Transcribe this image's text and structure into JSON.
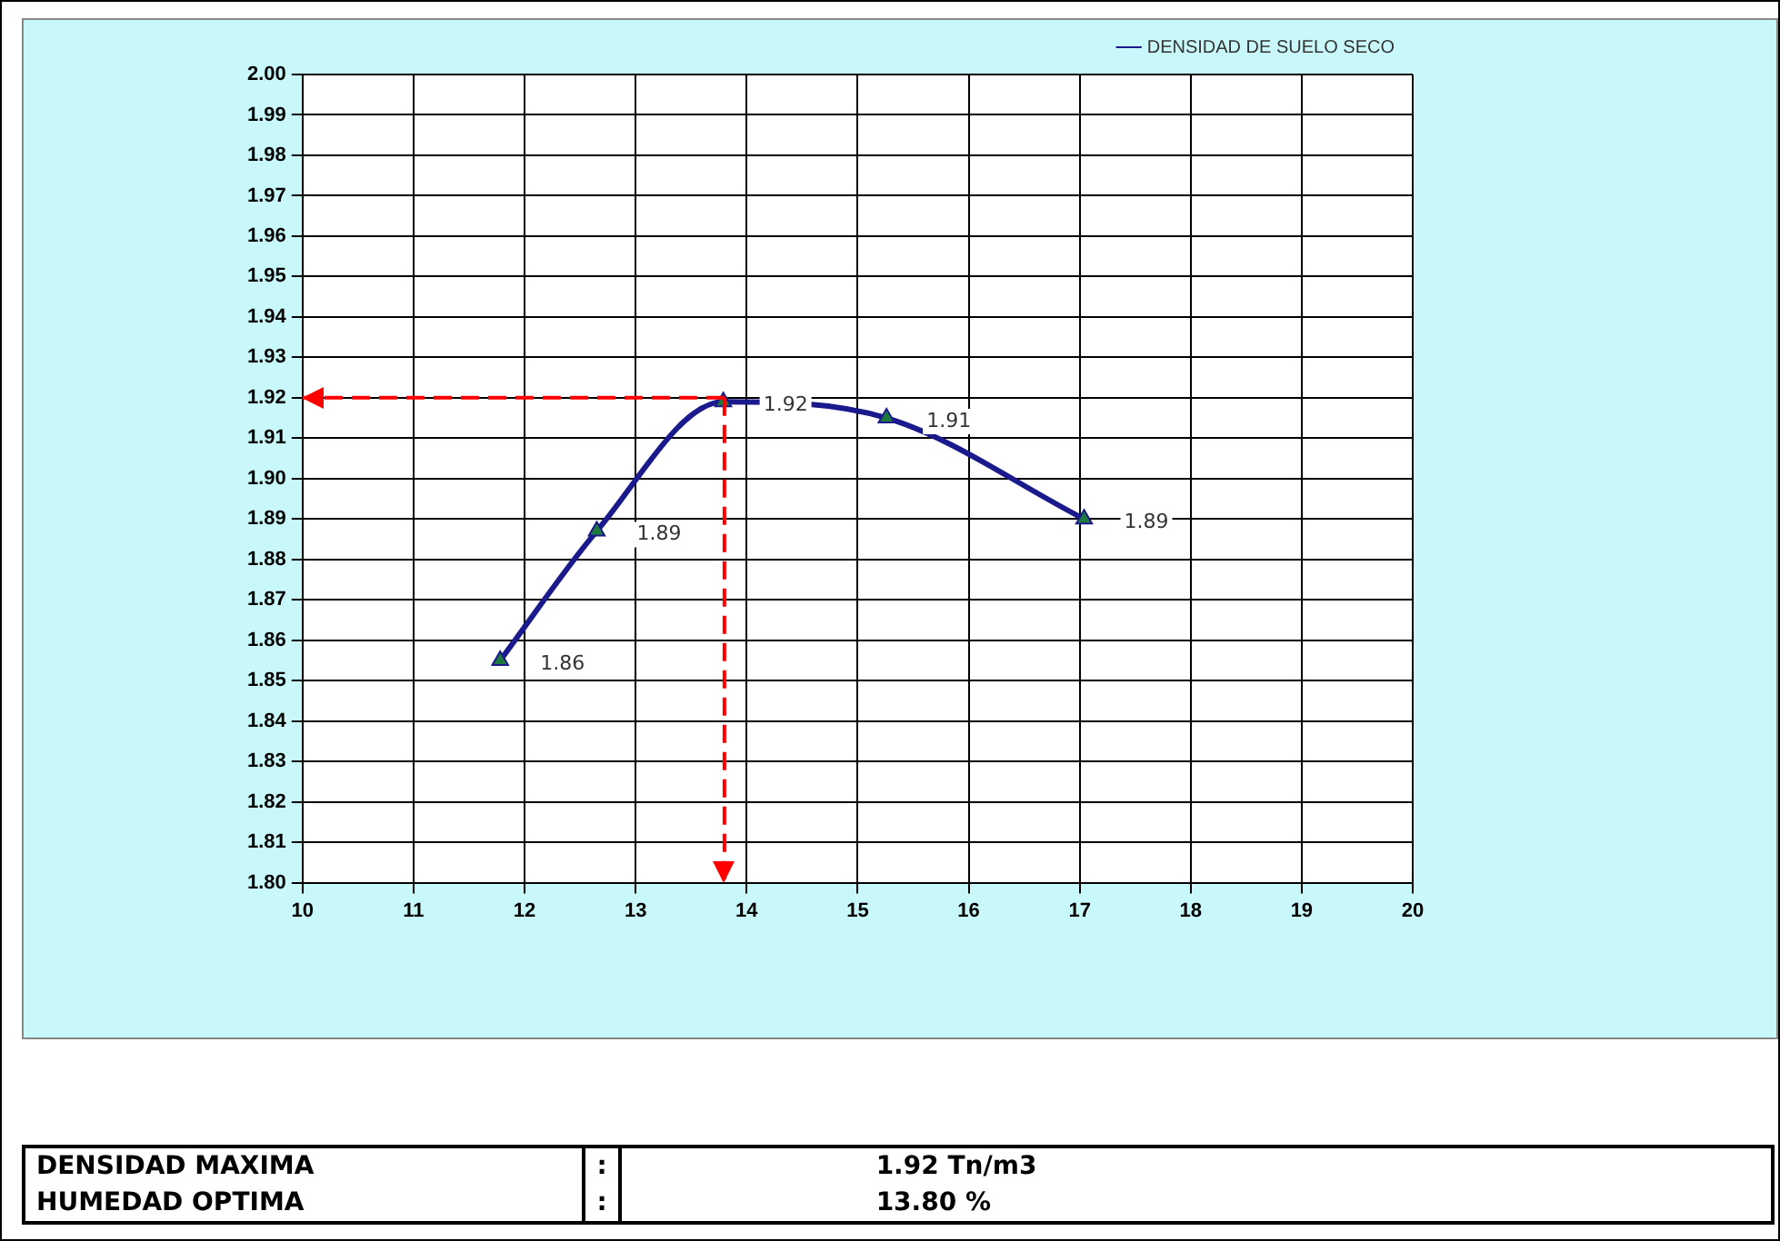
{
  "chart_data": {
    "type": "line",
    "x": [
      11.78,
      12.65,
      13.79,
      15.26,
      17.04
    ],
    "series": [
      {
        "name": "DENSIDAD DE SUELO SECO",
        "color": "#1a1a8c",
        "values": [
          1.855,
          1.887,
          1.919,
          1.915,
          1.89
        ],
        "value_labels": [
          "1.86",
          "1.89",
          "1.92",
          "1.91",
          "1.89"
        ]
      }
    ],
    "xlim": [
      10,
      20
    ],
    "xticks": [
      10,
      11,
      12,
      13,
      14,
      15,
      16,
      17,
      18,
      19,
      20
    ],
    "ylim": [
      1.8,
      2.0
    ],
    "yticks": [
      {
        "value": 1.8,
        "label": "1.80"
      },
      {
        "value": 1.81,
        "label": "1.81"
      },
      {
        "value": 1.82,
        "label": "1.82"
      },
      {
        "value": 1.83,
        "label": "1.83"
      },
      {
        "value": 1.84,
        "label": "1.84"
      },
      {
        "value": 1.85,
        "label": "1.85"
      },
      {
        "value": 1.86,
        "label": "1.86"
      },
      {
        "value": 1.87,
        "label": "1.87"
      },
      {
        "value": 1.88,
        "label": "1.88"
      },
      {
        "value": 1.89,
        "label": "1.89"
      },
      {
        "value": 1.9,
        "label": "1.90"
      },
      {
        "value": 1.91,
        "label": "1.91"
      },
      {
        "value": 1.92,
        "label": "1.92"
      },
      {
        "value": 1.93,
        "label": "1.93"
      },
      {
        "value": 1.94,
        "label": "1.94"
      },
      {
        "value": 1.95,
        "label": "1.95"
      },
      {
        "value": 1.96,
        "label": "1.96"
      },
      {
        "value": 1.97,
        "label": "1.97"
      },
      {
        "value": 1.98,
        "label": "1.98"
      },
      {
        "value": 1.99,
        "label": "1.99"
      },
      {
        "value": 2.0,
        "label": "2.00"
      }
    ],
    "ref_lines": [
      {
        "axis": "y",
        "value": 1.92,
        "color": "#ff0000",
        "line_style": "dashed"
      },
      {
        "axis": "x",
        "value": 13.8,
        "color": "#ff0000",
        "line_style": "dashed"
      }
    ],
    "grid": true,
    "legend": "top right",
    "marker": "triangle",
    "line_style": "solid",
    "annotations": [
      "DENSIDAD MAXIMA",
      ":",
      "1.92 Tn/m3",
      "HUMEDAD OPTIMA",
      ":",
      "13.80 %"
    ]
  }
}
